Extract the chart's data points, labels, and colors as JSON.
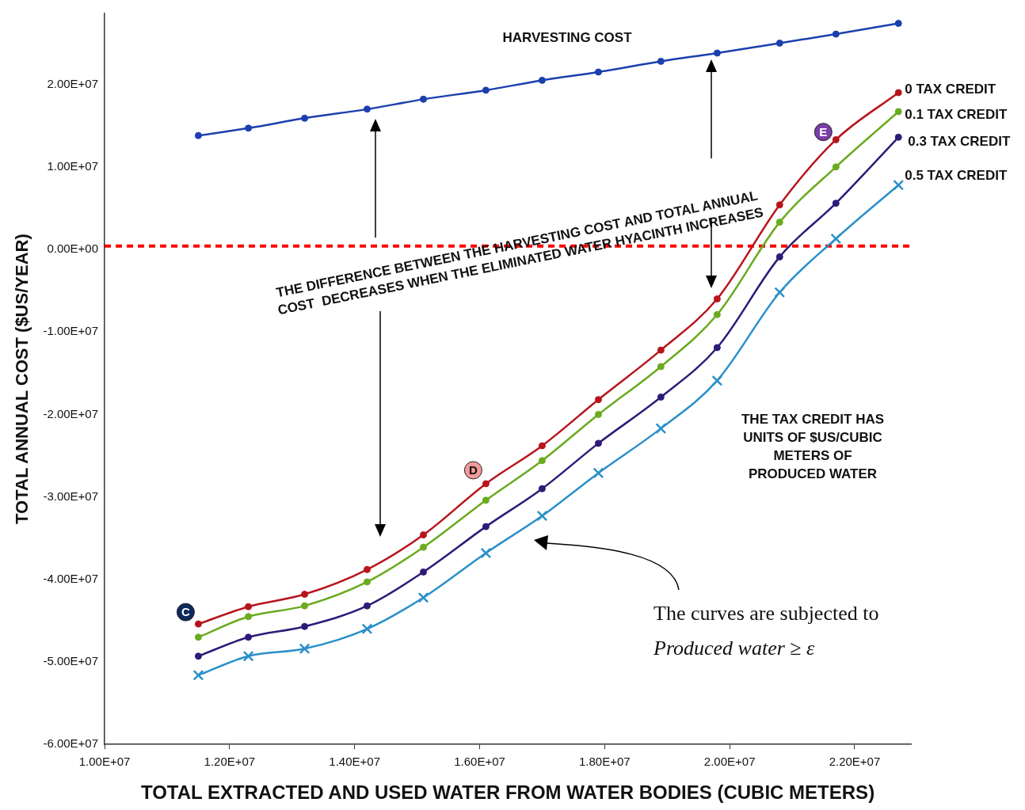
{
  "chart_data": {
    "type": "line",
    "xlabel": "TOTAL EXTRACTED AND USED WATER FROM WATER BODIES (CUBIC METERS)",
    "ylabel": "TOTAL ANNUAL COST ($US/YEAR)",
    "x": [
      11500000,
      12300000,
      13200000,
      14200000,
      15100000,
      16100000,
      17000000,
      17900000,
      18900000,
      19800000,
      20800000,
      21700000,
      22700000
    ],
    "series": [
      {
        "name": "HARVESTING COST",
        "color": "#1c3fae",
        "values": [
          13800000,
          14700000,
          15900000,
          17000000,
          18200000,
          19300000,
          20500000,
          21500000,
          22800000,
          23800000,
          25000000,
          26100000,
          27400000
        ]
      },
      {
        "name": "0 TAX CREDIT",
        "color": "#b8141c",
        "values": [
          -45400000,
          -43300000,
          -41800000,
          -38800000,
          -34600000,
          -28400000,
          -23800000,
          -18200000,
          -12200000,
          -6000000,
          5400000,
          13300000,
          19000000
        ]
      },
      {
        "name": "0.1 TAX CREDIT",
        "color": "#6aab1f",
        "values": [
          -47000000,
          -44500000,
          -43200000,
          -40300000,
          -36100000,
          -30400000,
          -25600000,
          -20000000,
          -14200000,
          -7900000,
          3300000,
          10000000,
          16700000
        ]
      },
      {
        "name": "0.3 TAX CREDIT",
        "color": "#2e1a78",
        "values": [
          -49300000,
          -47000000,
          -45700000,
          -43200000,
          -39100000,
          -33600000,
          -29000000,
          -23500000,
          -17900000,
          -11900000,
          -900000,
          5600000,
          13600000
        ]
      },
      {
        "name": "0.5 TAX CREDIT",
        "color": "#2a90c8",
        "marker": "cross",
        "values": [
          -51600000,
          -49300000,
          -48400000,
          -46000000,
          -42200000,
          -36800000,
          -32300000,
          -27100000,
          -21700000,
          -15900000,
          -5200000,
          1300000,
          7800000
        ]
      }
    ],
    "marker": "circle",
    "legend": false,
    "grid": false,
    "xlim": [
      10000000,
      22900000
    ],
    "xticks": [
      {
        "value": 10000000,
        "label": "1.00E+07"
      },
      {
        "value": 12000000,
        "label": "1.20E+07"
      },
      {
        "value": 14000000,
        "label": "1.40E+07"
      },
      {
        "value": 16000000,
        "label": "1.60E+07"
      },
      {
        "value": 18000000,
        "label": "1.80E+07"
      },
      {
        "value": 20000000,
        "label": "2.00E+07"
      },
      {
        "value": 22000000,
        "label": "2.20E+07"
      }
    ],
    "ylim": [
      -60000000,
      28600000
    ],
    "yticks": [
      {
        "value": -60000000,
        "label": "-6.00E+07"
      },
      {
        "value": -50000000,
        "label": "-5.00E+07"
      },
      {
        "value": -40000000,
        "label": "-4.00E+07"
      },
      {
        "value": -30000000,
        "label": "-3.00E+07"
      },
      {
        "value": -20000000,
        "label": "-2.00E+07"
      },
      {
        "value": -10000000,
        "label": "-1.00E+07"
      },
      {
        "value": 0,
        "label": "0.00E+00"
      },
      {
        "value": 10000000,
        "label": "1.00E+07"
      },
      {
        "value": 20000000,
        "label": "2.00E+07"
      }
    ],
    "ref_lines": [
      {
        "axis": "y",
        "value": 400000,
        "color": "#ff0000",
        "line_style": "dashed"
      }
    ],
    "annotations": [
      "THE DIFFERENCE BETWEEN THE HARVESTING COST AND TOTAL ANNUAL\nCOST  DECREASES WHEN THE ELIMINATED WATER HYACINTH INCREASES",
      "THE TAX CREDIT HAS\nUNITS OF $US/CUBIC\nMETERS OF\nPRODUCED WATER",
      "The curves are subjected to\nProduced water ≥ ε",
      {
        "text": "C",
        "x": 11500000,
        "y": -45500000
      },
      {
        "text": "D",
        "x": 16100000,
        "y": -28300000
      },
      {
        "text": "E",
        "x": 21700000,
        "y": 12700000
      }
    ]
  }
}
